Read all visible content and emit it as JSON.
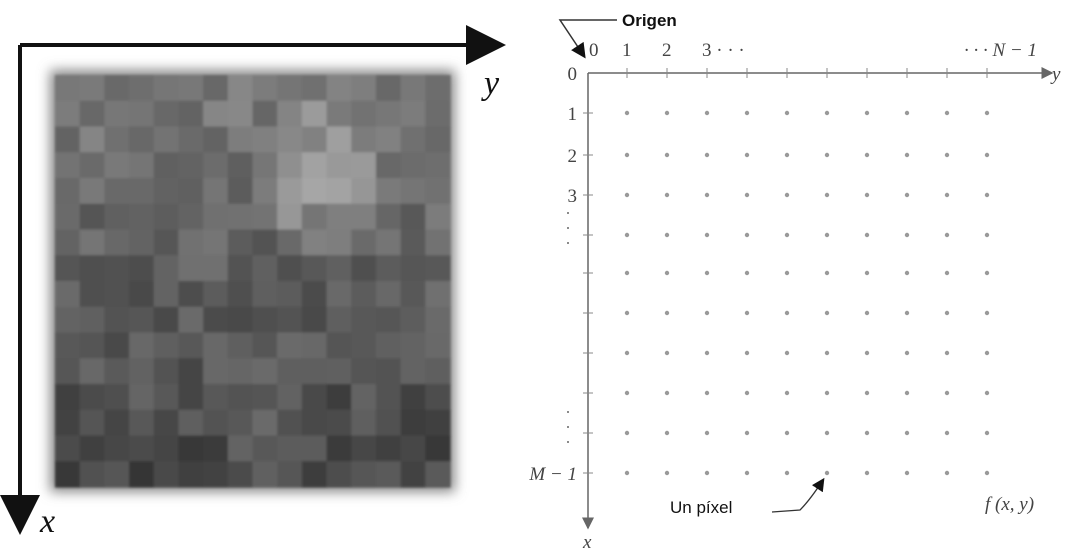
{
  "left_image": {
    "y_axis_label": "y",
    "x_axis_label": "x"
  },
  "grid_diagram": {
    "origin_label": "Origen",
    "column_labels": [
      "0",
      "1",
      "2",
      "3 · · ·",
      "· · · N − 1"
    ],
    "row_labels": [
      "0",
      "1",
      "2",
      "3",
      "M − 1"
    ],
    "y_axis_label": "y",
    "x_axis_label": "x",
    "pixel_label": "Un píxel",
    "function_label": "f (x, y)"
  }
}
